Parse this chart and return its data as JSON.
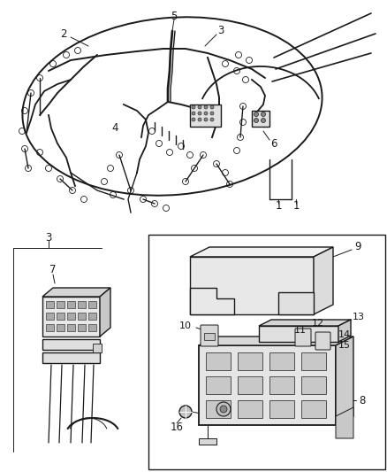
{
  "bg_color": "#ffffff",
  "line_color": "#1a1a1a",
  "fig_width": 4.38,
  "fig_height": 5.33,
  "dpi": 100
}
